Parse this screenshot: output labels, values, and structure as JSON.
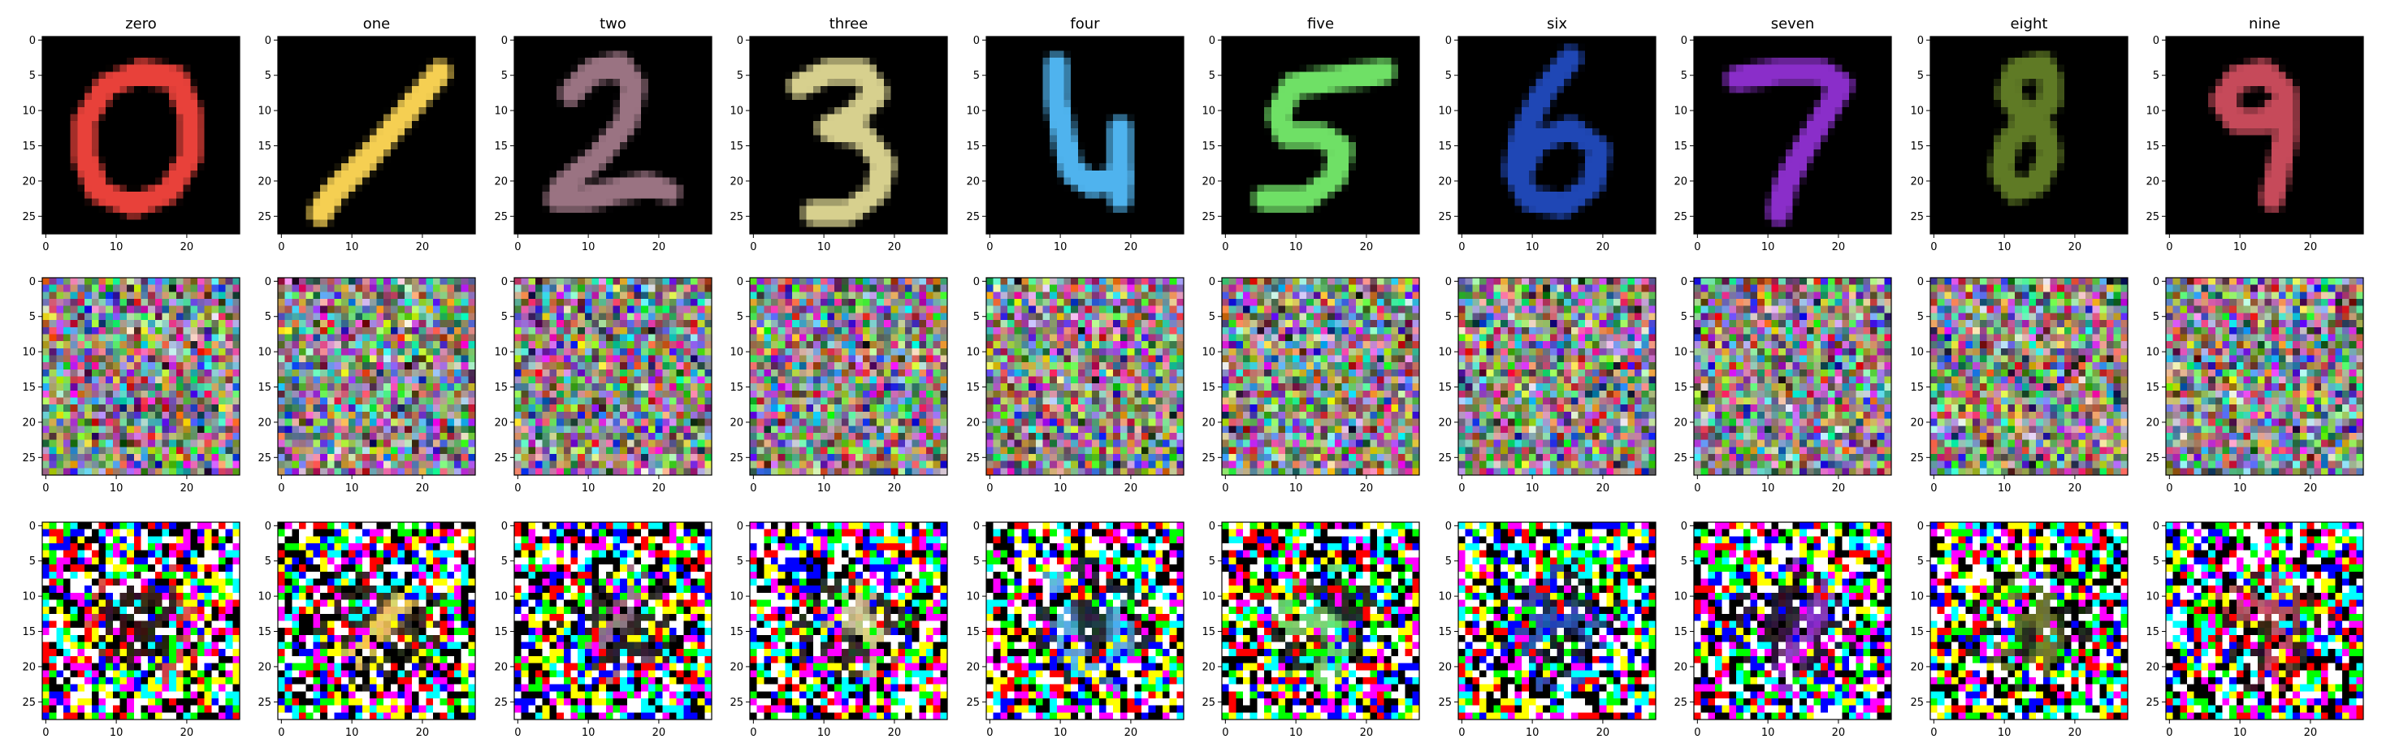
{
  "chart_data": {
    "type": "image-grid",
    "grid": {
      "rows": 3,
      "cols": 10
    },
    "column_titles": [
      "zero",
      "one",
      "two",
      "three",
      "four",
      "five",
      "six",
      "seven",
      "eight",
      "nine"
    ],
    "row_descriptions": [
      "colored MNIST digit sample",
      "random RGB noise",
      "noisy digit reconstruction"
    ],
    "image_size": 28,
    "axis": {
      "xlim": [
        -0.5,
        27.5
      ],
      "ylim": [
        27.5,
        -0.5
      ],
      "xticks": [
        0,
        10,
        20
      ],
      "yticks": [
        0,
        5,
        10,
        15,
        20,
        25
      ]
    },
    "digit_colors": [
      "#e8413a",
      "#f5cf52",
      "#9a7382",
      "#d7d08e",
      "#4fb3ee",
      "#6fe066",
      "#1f47b5",
      "#8a2ec9",
      "#5f7a25",
      "#c64a5a"
    ],
    "noise_palette": [
      "#ff0000",
      "#00ff00",
      "#0000ff",
      "#ffff00",
      "#ff00ff",
      "#00ffff",
      "#ffffff",
      "#000000",
      "#ff8080",
      "#80ff80",
      "#8080ff",
      "#ffa040",
      "#c040ff",
      "#40c0ff",
      "#ff4080",
      "#a0ff40",
      "#804020",
      "#208060",
      "#606060",
      "#c0c0c0"
    ]
  }
}
